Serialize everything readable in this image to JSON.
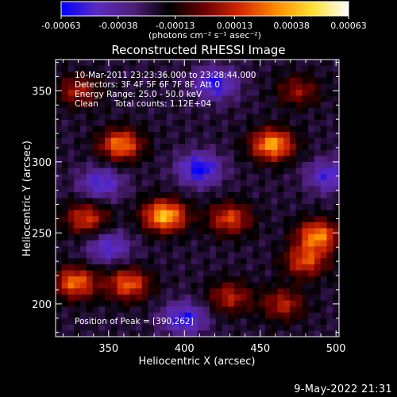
{
  "colorbar": {
    "tick_labels": [
      "-0.00063",
      "-0.00038",
      "-0.00013",
      "0.00013",
      "0.00038",
      "0.00063"
    ],
    "unit_label": "(photons cm⁻² s⁻¹ asec⁻²)",
    "range": [
      -0.00063,
      0.00063
    ],
    "palette": [
      "#0000ff",
      "#5b2bbf",
      "#4f1f7a",
      "#000000",
      "#6b0000",
      "#d42a00",
      "#ff8c00",
      "#ffe033",
      "#ffffff"
    ]
  },
  "chart_data": {
    "type": "heatmap",
    "title": "Reconstructed RHESSI Image",
    "xlabel": "Heliocentric X (arcsec)",
    "ylabel": "Heliocentric Y (arcsec)",
    "xlim": [
      315,
      502
    ],
    "ylim": [
      177,
      372
    ],
    "xticks": [
      350,
      400,
      450,
      500
    ],
    "yticks": [
      200,
      250,
      300,
      350
    ],
    "annotations": [
      "10-Mar-2011 23:23:36.000 to 23:28:44.000",
      "Detectors: 3F 4F 5F 6F 7F 8F, Att 0",
      "Energy Range: 25.0 - 50.0 keV",
      "Clean",
      "Total counts: 1.12E+04"
    ],
    "peak_label": "Position of Peak = [390,262]",
    "peak": [
      390,
      262
    ],
    "sources": [
      {
        "x": 387,
        "y": 262,
        "amplitude": 0.00063
      },
      {
        "x": 358,
        "y": 312,
        "amplitude": 0.0005
      },
      {
        "x": 458,
        "y": 312,
        "amplitude": 0.00058
      },
      {
        "x": 430,
        "y": 260,
        "amplitude": 0.0004
      },
      {
        "x": 335,
        "y": 260,
        "amplitude": 0.00038
      },
      {
        "x": 328,
        "y": 215,
        "amplitude": 0.00048
      },
      {
        "x": 363,
        "y": 214,
        "amplitude": 0.00045
      },
      {
        "x": 488,
        "y": 248,
        "amplitude": 0.00052
      },
      {
        "x": 480,
        "y": 230,
        "amplitude": 0.0004
      },
      {
        "x": 430,
        "y": 205,
        "amplitude": 0.00032
      },
      {
        "x": 465,
        "y": 200,
        "amplitude": 0.00032
      },
      {
        "x": 330,
        "y": 350,
        "amplitude": 0.0003
      },
      {
        "x": 475,
        "y": 350,
        "amplitude": 0.00026
      }
    ],
    "negative_regions": [
      {
        "x": 410,
        "y": 295,
        "amplitude": -0.0004
      },
      {
        "x": 345,
        "y": 285,
        "amplitude": -0.0003
      },
      {
        "x": 420,
        "y": 355,
        "amplitude": -0.00035
      },
      {
        "x": 400,
        "y": 190,
        "amplitude": -0.00035
      },
      {
        "x": 495,
        "y": 290,
        "amplitude": -0.0003
      },
      {
        "x": 350,
        "y": 240,
        "amplitude": -0.00028
      }
    ]
  },
  "footer": {
    "timestamp": "9-May-2022 21:31"
  }
}
